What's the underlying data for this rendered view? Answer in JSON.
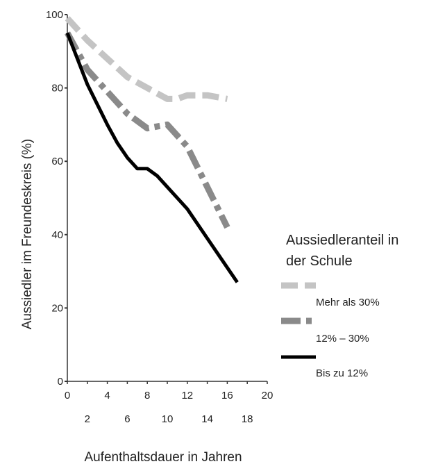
{
  "chart_data": {
    "type": "line",
    "xlabel": "Aufenthaltsdauer in Jahren",
    "ylabel": "Aussiedler im Freundeskreis (%)",
    "xlim": [
      0,
      20
    ],
    "ylim": [
      0,
      100
    ],
    "x_ticks_upper": [
      "0",
      "4",
      "8",
      "12",
      "16",
      "20"
    ],
    "x_ticks_lower": [
      "2",
      "6",
      "10",
      "14",
      "18"
    ],
    "y_ticks": [
      "0",
      "20",
      "40",
      "60",
      "80",
      "100"
    ],
    "grid": false,
    "legend": {
      "title_lines": [
        "Aussiedleranteil in",
        "der Schule"
      ],
      "placement": "right"
    },
    "series": [
      {
        "name": "Mehr als 30%",
        "color": "#c4c4c4",
        "style": "dashed",
        "x": [
          0,
          2,
          4,
          6,
          8,
          10,
          11,
          12,
          14,
          16
        ],
        "y": [
          99,
          93,
          88,
          83,
          80,
          77,
          77,
          78,
          78,
          77
        ]
      },
      {
        "name": "12% – 30%",
        "color": "#8a8a8a",
        "style": "dashdot",
        "x": [
          0,
          2,
          4,
          6,
          8,
          10,
          12,
          14,
          16
        ],
        "y": [
          95,
          85,
          79,
          73,
          69,
          70,
          64,
          53,
          42
        ]
      },
      {
        "name": "Bis zu 12%",
        "color": "#000000",
        "style": "solid",
        "x": [
          0,
          2,
          4,
          5,
          6,
          7,
          8,
          9,
          10,
          12,
          14,
          17
        ],
        "y": [
          95,
          81,
          70,
          65,
          61,
          58,
          58,
          56,
          53,
          47,
          39,
          27
        ]
      }
    ]
  }
}
